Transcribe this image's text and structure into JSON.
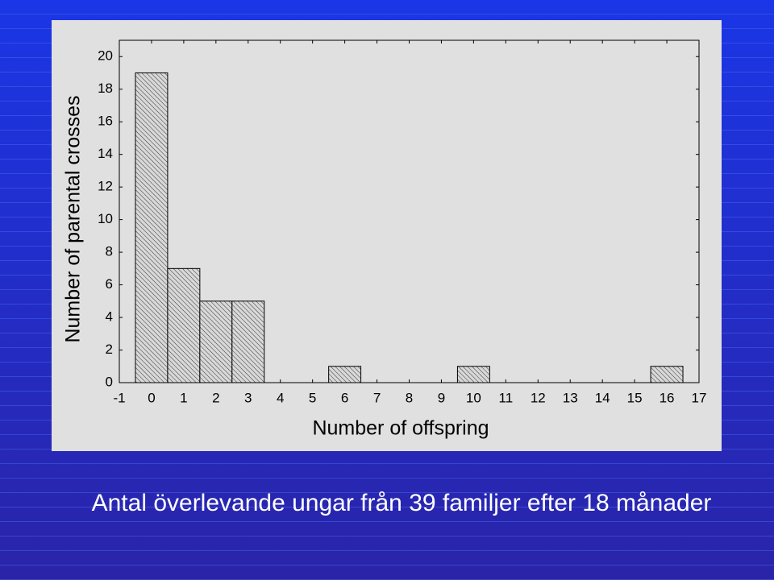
{
  "chart_data": {
    "type": "histogram",
    "xlabel": "Number of offspring",
    "ylabel": "Number of parental crosses",
    "bins": [
      -0.5,
      0.5,
      1.5,
      2.5,
      3.5,
      4.5,
      5.5,
      6.5,
      7.5,
      8.5,
      9.5,
      10.5,
      11.5,
      12.5,
      13.5,
      14.5,
      15.5,
      16.5
    ],
    "values": [
      19,
      7,
      5,
      5,
      0,
      0,
      1,
      0,
      0,
      0,
      1,
      0,
      0,
      0,
      0,
      0,
      1
    ],
    "color": "#d8d8d8",
    "xlim": [
      -1,
      17
    ],
    "xticks": [
      -1,
      0,
      1,
      2,
      3,
      4,
      5,
      6,
      7,
      8,
      9,
      10,
      11,
      12,
      13,
      14,
      15,
      16,
      17
    ],
    "ylim": [
      0,
      21
    ],
    "yticks": [
      0,
      2,
      4,
      6,
      8,
      10,
      12,
      14,
      16,
      18,
      20
    ]
  },
  "caption": "Antal överlevande ungar från 39 familjer efter 18 månader"
}
